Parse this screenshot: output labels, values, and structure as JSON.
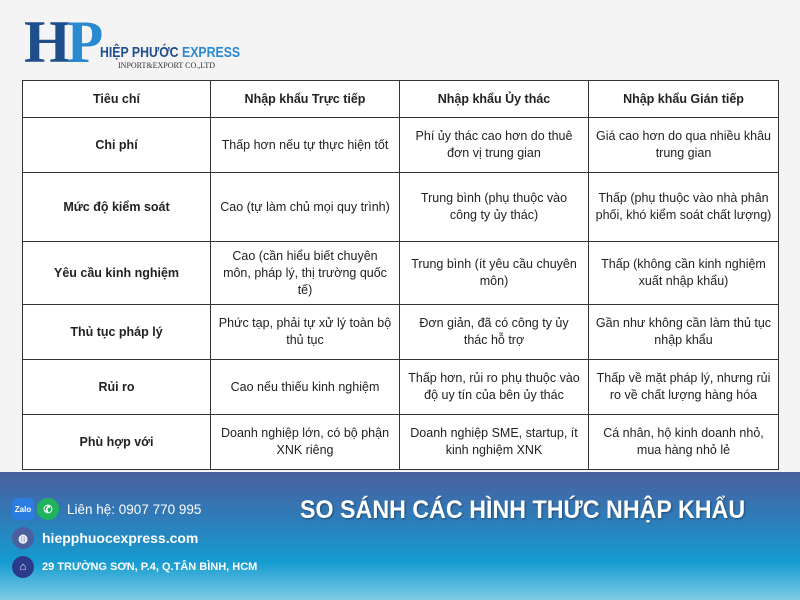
{
  "logo": {
    "mark_h": "H",
    "mark_p": "P",
    "name_part1": "HIỆP PHƯỚC",
    "name_part2": "EXPRESS",
    "tagline": "INPORT&EXPORT CO.,LTD"
  },
  "table": {
    "headers": [
      "Tiêu chí",
      "Nhập khẩu Trực tiếp",
      "Nhập khẩu Ủy thác",
      "Nhập khẩu Gián tiếp"
    ],
    "rows": [
      [
        "Chi phí",
        "Thấp hơn nếu tự thực hiện tốt",
        "Phí ủy thác cao hơn do thuê đơn vị trung gian",
        "Giá cao hơn do qua nhiều khâu trung gian"
      ],
      [
        "Mức độ kiểm soát",
        "Cao (tự làm chủ mọi quy trình)",
        "Trung bình (phụ thuộc vào công ty ủy thác)",
        "Thấp (phụ thuộc vào nhà phân phối, khó kiểm soát chất lượng)"
      ],
      [
        "Yêu cầu kinh nghiệm",
        "Cao (cần hiểu biết chuyên môn, pháp lý, thị trường quốc tế)",
        "Trung bình (ít yêu cầu chuyên môn)",
        "Thấp (không cần kinh nghiệm xuất nhập khẩu)"
      ],
      [
        "Thủ tục pháp lý",
        "Phức tạp, phải tự xử lý toàn bộ thủ tục",
        "Đơn giản, đã có công ty ủy thác hỗ trợ",
        "Gần như không cần làm thủ tục nhập khẩu"
      ],
      [
        "Rủi ro",
        "Cao nếu thiếu kinh nghiệm",
        "Thấp hơn, rủi ro phụ thuộc vào độ uy tín của bên ủy thác",
        "Thấp về mặt pháp lý, nhưng rủi ro về chất lượng hàng hóa"
      ],
      [
        "Phù hợp với",
        "Doanh nghiệp lớn, có bộ phận XNK riêng",
        "Doanh nghiệp SME, startup, ít kinh nghiệm XNK",
        "Cá nhân, hộ kinh doanh nhỏ, mua hàng nhỏ lẻ"
      ]
    ]
  },
  "footer": {
    "title": "SO SÁNH CÁC HÌNH THỨC NHẬP KHẨU",
    "zalo": "Zalo",
    "phone": "Liên hệ: 0907 770 995",
    "website": "hiepphuocexpress.com",
    "address": "29 TRƯỜNG SƠN, P.4, Q.TÂN BÌNH, HCM"
  }
}
